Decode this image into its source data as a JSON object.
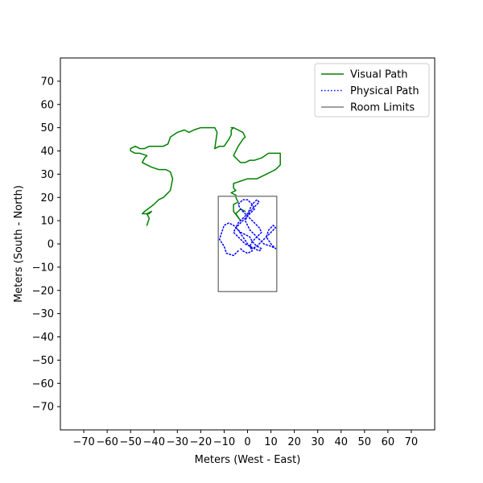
{
  "chart_data": {
    "type": "line",
    "title": "",
    "xlabel": "Meters (West - East)",
    "ylabel": "Meters (South - North)",
    "xlim": [
      -80,
      80
    ],
    "ylim": [
      -80,
      80
    ],
    "xticks": [
      -70,
      -60,
      -50,
      -40,
      -30,
      -20,
      -10,
      0,
      10,
      20,
      30,
      40,
      50,
      60,
      70
    ],
    "yticks": [
      -70,
      -60,
      -50,
      -40,
      -30,
      -20,
      -10,
      0,
      10,
      20,
      30,
      40,
      50,
      60,
      70
    ],
    "grid": false,
    "legend_position": "top-right",
    "series": [
      {
        "name": "Visual Path",
        "color": "#008000",
        "style": "solid",
        "x": [
          -43,
          -42,
          -43,
          -41,
          -42,
          -45,
          -44,
          -40,
          -38,
          -36,
          -33,
          -32,
          -33,
          -35,
          -38,
          -41,
          -45,
          -44,
          -43,
          -46,
          -48,
          -50,
          -50,
          -48,
          -46,
          -44,
          -42,
          -40,
          -36,
          -34,
          -33,
          -30,
          -27,
          -25,
          -23,
          -20,
          -14,
          -13,
          -14,
          -12,
          -10,
          -8,
          -7,
          -7,
          -6,
          -7,
          -6,
          -4,
          -2,
          -1,
          -2,
          -4,
          -5,
          -6,
          -4,
          -3,
          -1,
          1,
          3,
          6,
          9,
          12,
          14,
          14,
          14,
          12,
          10,
          8,
          6,
          4,
          2,
          0,
          -3,
          -6,
          -6,
          -5,
          -7,
          -5,
          -5,
          -4,
          -6,
          -6,
          -3,
          -5,
          -3,
          -1
        ],
        "y": [
          8,
          11,
          13,
          14,
          13,
          13,
          14,
          17,
          19,
          20,
          23,
          28,
          31,
          32,
          32,
          33,
          35,
          37,
          38,
          39,
          39,
          40,
          41,
          42,
          41,
          41,
          42,
          42,
          42,
          43,
          46,
          48,
          49,
          48,
          49,
          50,
          50,
          48,
          41,
          42,
          42,
          45,
          47,
          49,
          50,
          50,
          50,
          49,
          48,
          46,
          45,
          42,
          40,
          38,
          36,
          35,
          35,
          36,
          36,
          37,
          39,
          39,
          39,
          36,
          34,
          32,
          31,
          30,
          29,
          28,
          28,
          28,
          27,
          26,
          24,
          23,
          22,
          21,
          20,
          18,
          17,
          14,
          10,
          13,
          15,
          14
        ]
      },
      {
        "name": "Physical Path",
        "color": "#0000ff",
        "style": "dotted",
        "x": [
          -4,
          -6,
          -9,
          -10,
          -12,
          -11,
          -10,
          -8,
          -6,
          -4,
          -2,
          0,
          2,
          4,
          6,
          8,
          10,
          12,
          11,
          9,
          8,
          10,
          12,
          10,
          7,
          5,
          3,
          1,
          0,
          -1,
          0,
          1,
          3,
          5,
          4,
          2,
          1,
          0,
          -2,
          -4,
          -5,
          -3,
          -1,
          1,
          2,
          4,
          6,
          5,
          3,
          1,
          2,
          4,
          6,
          5,
          3,
          1,
          -1,
          -3,
          -4,
          -2,
          0,
          2,
          3,
          1,
          -1,
          -3,
          -5,
          -6,
          -4,
          -2,
          -1,
          1,
          2,
          0,
          -2,
          -3
        ],
        "y": [
          -3,
          -5,
          -4,
          -1,
          2,
          5,
          8,
          9,
          8,
          6,
          3,
          0,
          -2,
          -1,
          1,
          3,
          5,
          7,
          8,
          6,
          3,
          0,
          -2,
          -1,
          0,
          2,
          4,
          6,
          8,
          10,
          12,
          14,
          16,
          18,
          19,
          17,
          15,
          13,
          11,
          9,
          7,
          5,
          4,
          3,
          1,
          -1,
          -2,
          -3,
          -2,
          -1,
          1,
          3,
          5,
          7,
          9,
          11,
          13,
          15,
          17,
          19,
          19,
          17,
          15,
          13,
          11,
          9,
          7,
          5,
          3,
          1,
          0,
          -1,
          -3,
          -4,
          -3,
          -2
        ]
      },
      {
        "name": "Room Limits",
        "color": "#808080",
        "style": "solid",
        "x": [
          -12.5,
          12.5,
          12.5,
          -12.5,
          -12.5
        ],
        "y": [
          20.5,
          20.5,
          -20.5,
          -20.5,
          20.5
        ]
      }
    ]
  }
}
